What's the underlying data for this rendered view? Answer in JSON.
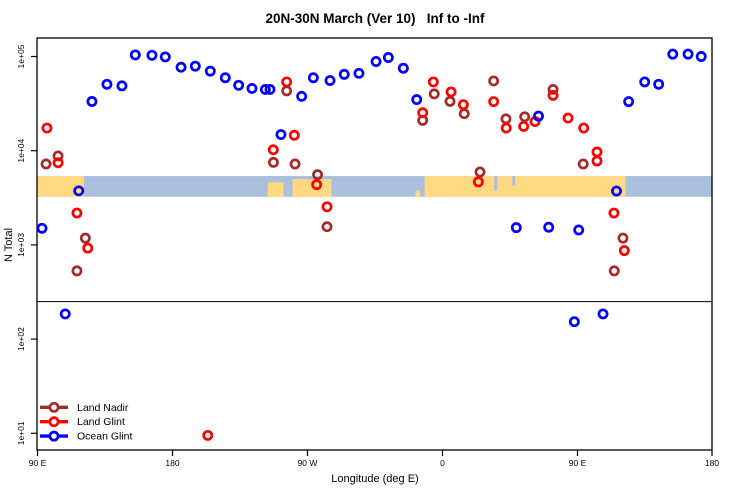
{
  "title": "20N-30N March (Ver 10)   Inf to -Inf",
  "axes": {
    "x_label": "Longitude (deg E)",
    "y_label": "N Total",
    "x_tick_labels": [
      "90 E",
      "180",
      "90 W",
      "0",
      "90 E",
      "180"
    ],
    "y_tick_labels": [
      "1e+01",
      "1e+02",
      "1e+03",
      "1e+04",
      "1e+05"
    ]
  },
  "legend": [
    {
      "label": "Land Nadir",
      "color": "#A52A2A"
    },
    {
      "label": "Land Glint",
      "color": "#FF0000"
    },
    {
      "label": "Ocean Glint",
      "color": "#0000FF"
    }
  ],
  "colors": {
    "land_nadir": "#A52A2A",
    "land_glint": "#FF0000",
    "ocean_glint": "#0000FF",
    "map_ocean": "#A9BFDC",
    "map_land": "#FFD882",
    "frame": "#000000"
  },
  "chart_data": {
    "type": "scatter",
    "title": "20N-30N March (Ver 10)   Inf to -Inf",
    "xlabel": "Longitude (deg E)",
    "ylabel": "N Total",
    "x_axis": {
      "ticks_deg_east": [
        90,
        180,
        270,
        360,
        450,
        540
      ],
      "tick_labels": [
        "90 E",
        "180",
        "90 W",
        "0",
        "90 E",
        "180"
      ],
      "range": [
        90,
        540
      ]
    },
    "y_axis": {
      "scale": "log10",
      "ticks": [
        10,
        100,
        1000,
        10000,
        100000
      ],
      "tick_labels": [
        "1e+01",
        "1e+02",
        "1e+03",
        "1e+04",
        "1e+05"
      ],
      "range": [
        8,
        160000
      ]
    },
    "reference_line_N": 250,
    "map_band": {
      "description": "world-map strip drawn across plot",
      "N_range": [
        3240,
        5380
      ],
      "ocean_color": "#A9BFDC",
      "land_color": "#FFD882",
      "land_segments_deg_east": [
        {
          "lon0": 90,
          "lon1": 121,
          "frac": 1.0,
          "anchor": "top"
        },
        {
          "lon0": 243.5,
          "lon1": 254,
          "frac": 0.7,
          "anchor": "bottom"
        },
        {
          "lon0": 260,
          "lon1": 286,
          "frac": 0.85,
          "anchor": "bottom"
        },
        {
          "lon0": 342,
          "lon1": 345,
          "frac": 0.3,
          "anchor": "bottom"
        },
        {
          "lon0": 348,
          "lon1": 482,
          "frac": 1.0,
          "anchor": "top"
        }
      ],
      "ocean_notches_deg_east": [
        {
          "lon0": 394.5,
          "lon1": 396.5,
          "frac": 0.7,
          "anchor": "top"
        },
        {
          "lon0": 406.5,
          "lon1": 408.5,
          "frac": 0.45,
          "anchor": "top"
        }
      ]
    },
    "series": [
      {
        "name": "Land Nadir",
        "color": "#A52A2A",
        "points": [
          [
            95.7,
            7230
          ],
          [
            103.7,
            8790
          ],
          [
            116.3,
            530
          ],
          [
            121.9,
            1180
          ],
          [
            247.3,
            7520
          ],
          [
            256.1,
            43200
          ],
          [
            261.7,
            7230
          ],
          [
            276.7,
            5570
          ],
          [
            283,
            1560
          ],
          [
            346.8,
            21000
          ],
          [
            354.5,
            40100
          ],
          [
            365,
            33400
          ],
          [
            374.5,
            24700
          ],
          [
            385,
            5940
          ],
          [
            394.1,
            55000
          ],
          [
            402.3,
            21800
          ],
          [
            414.8,
            22900
          ],
          [
            433.7,
            44700
          ],
          [
            453.8,
            7230
          ],
          [
            474.5,
            530
          ],
          [
            480.3,
            1180
          ]
        ]
      },
      {
        "name": "Land Glint",
        "color": "#FF0000",
        "points": [
          [
            96.3,
            17400
          ],
          [
            103.7,
            7450
          ],
          [
            116.3,
            2180
          ],
          [
            123.5,
            925
          ],
          [
            203.5,
            9.5
          ],
          [
            247.2,
            10250
          ],
          [
            256.1,
            53700
          ],
          [
            261.2,
            14600
          ],
          [
            276.1,
            4360
          ],
          [
            283,
            2540
          ],
          [
            346.8,
            25300
          ],
          [
            353.9,
            53700
          ],
          [
            365.7,
            42100
          ],
          [
            373.9,
            30800
          ],
          [
            383.9,
            4670
          ],
          [
            394.1,
            33200
          ],
          [
            402.5,
            17400
          ],
          [
            414.1,
            18100
          ],
          [
            421.7,
            20400
          ],
          [
            433.7,
            38700
          ],
          [
            443.7,
            22200
          ],
          [
            454.1,
            17400
          ],
          [
            463,
            9700
          ],
          [
            463,
            7780
          ],
          [
            474.3,
            2180
          ],
          [
            481.2,
            870
          ]
        ]
      },
      {
        "name": "Ocean Glint",
        "color": "#0000FF",
        "points": [
          [
            93,
            1500
          ],
          [
            108.5,
            185
          ],
          [
            117.5,
            3750
          ],
          [
            126.3,
            33300
          ],
          [
            136.3,
            50700
          ],
          [
            146.3,
            48800
          ],
          [
            155.2,
            104000
          ],
          [
            166.3,
            103000
          ],
          [
            175.2,
            99000
          ],
          [
            185.7,
            77000
          ],
          [
            195.2,
            79000
          ],
          [
            205.2,
            70000
          ],
          [
            215.2,
            59500
          ],
          [
            224.1,
            49500
          ],
          [
            233,
            45800
          ],
          [
            241.9,
            44700
          ],
          [
            245,
            44700
          ],
          [
            252.3,
            14850
          ],
          [
            266.1,
            37800
          ],
          [
            273.9,
            59500
          ],
          [
            285,
            55600
          ],
          [
            294.5,
            64600
          ],
          [
            304.3,
            66300
          ],
          [
            315.7,
            88500
          ],
          [
            323.9,
            97600
          ],
          [
            333.9,
            75100
          ],
          [
            342.8,
            34900
          ],
          [
            409.2,
            1525
          ],
          [
            424,
            23300
          ],
          [
            430.8,
            1540
          ],
          [
            447.9,
            153
          ],
          [
            450.8,
            1440
          ],
          [
            467,
            185
          ],
          [
            476,
            3730
          ],
          [
            484.1,
            33200
          ],
          [
            494.8,
            53700
          ],
          [
            504.1,
            50700
          ],
          [
            513.5,
            106000
          ],
          [
            523.7,
            106000
          ],
          [
            532.5,
            100000
          ]
        ]
      }
    ]
  }
}
